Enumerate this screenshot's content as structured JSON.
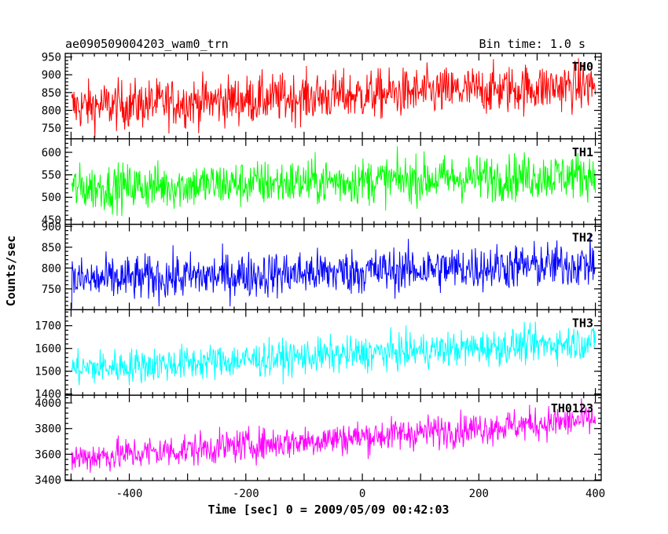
{
  "chart_data": {
    "type": "line",
    "title": "ae090509004203_wam0_trn",
    "bin_label": "Bin time: 1.0 s",
    "xlabel": "Time [sec] 0 = 2009/05/09 00:42:03",
    "ylabel": "Counts/sec",
    "xlim": [
      -510,
      410
    ],
    "xticks": [
      -400,
      -200,
      0,
      200,
      400
    ],
    "x_step": 1,
    "grid": false,
    "series": [
      {
        "name": "TH0",
        "color": "#ff0000",
        "ylim": [
          720,
          960
        ],
        "yticks": [
          750,
          800,
          850,
          900,
          950
        ],
        "start_value": 810,
        "end_value": 870,
        "noise": 40
      },
      {
        "name": "TH1",
        "color": "#00ff00",
        "ylim": [
          440,
          630
        ],
        "yticks": [
          450,
          500,
          550,
          600
        ],
        "start_value": 520,
        "end_value": 550,
        "noise": 30
      },
      {
        "name": "TH2",
        "color": "#0000ff",
        "ylim": [
          700,
          905
        ],
        "yticks": [
          750,
          800,
          850,
          900
        ],
        "start_value": 770,
        "end_value": 810,
        "noise": 32
      },
      {
        "name": "TH3",
        "color": "#00ffff",
        "ylim": [
          1395,
          1770
        ],
        "yticks": [
          1400,
          1500,
          1600,
          1700
        ],
        "start_value": 1510,
        "end_value": 1630,
        "noise": 45
      },
      {
        "name": "TH0123",
        "color": "#ff00ff",
        "ylim": [
          3395,
          4060
        ],
        "yticks": [
          3400,
          3600,
          3800,
          4000
        ],
        "start_value": 3570,
        "end_value": 3870,
        "noise": 75
      }
    ]
  }
}
